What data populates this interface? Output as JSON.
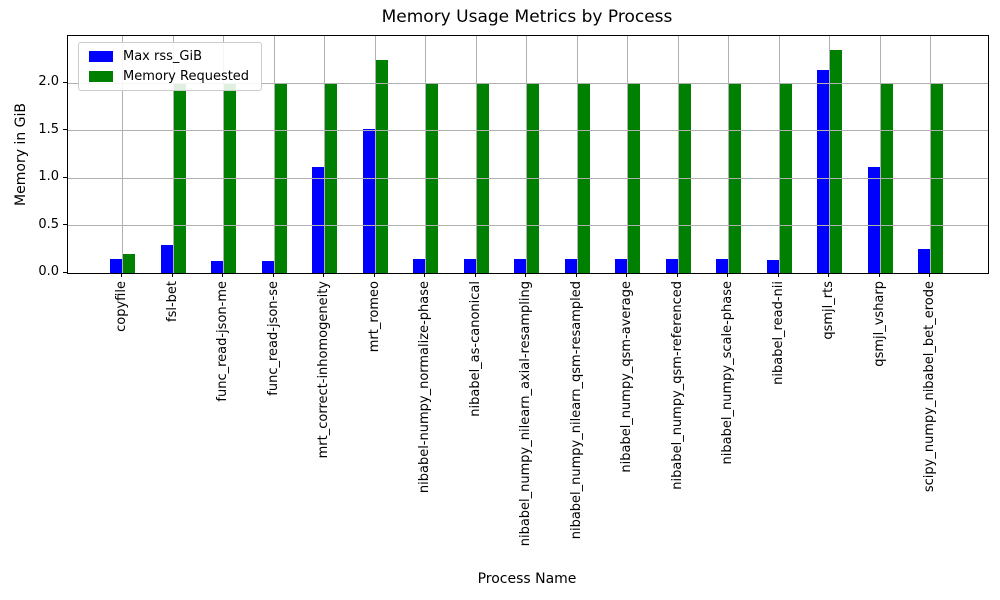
{
  "chart_data": {
    "type": "bar",
    "title": "Memory Usage Metrics by Process",
    "xlabel": "Process Name",
    "ylabel": "Memory in GiB",
    "categories": [
      "copyfile",
      "fsl-bet",
      "func_read-json-me",
      "func_read-json-se",
      "mrt_correct-inhomogeneity",
      "mrt_romeo",
      "nibabel-numpy_normalize-phase",
      "nibabel_as-canonical",
      "nibabel_numpy_nilearn_axial-resampling",
      "nibabel_numpy_nilearn_qsm-resampled",
      "nibabel_numpy_qsm-average",
      "nibabel_numpy_qsm-referenced",
      "nibabel_numpy_scale-phase",
      "nibabel_read-nii",
      "qsmjl_rts",
      "qsmjl_vsharp",
      "scipy_numpy_nibabel_bet_erode"
    ],
    "series": [
      {
        "name": "Max rss_GiB",
        "color": "#0000ff",
        "values": [
          0.15,
          0.3,
          0.13,
          0.13,
          1.12,
          1.52,
          0.15,
          0.15,
          0.15,
          0.15,
          0.15,
          0.15,
          0.15,
          0.14,
          2.14,
          1.12,
          0.25
        ]
      },
      {
        "name": "Memory Requested",
        "color": "#008000",
        "values": [
          0.2,
          2.0,
          2.0,
          2.0,
          2.0,
          2.25,
          2.0,
          2.0,
          2.0,
          2.0,
          2.0,
          2.0,
          2.0,
          2.0,
          2.35,
          2.0,
          2.0
        ]
      }
    ],
    "ylim": [
      0,
      2.5
    ],
    "y_ticks": [
      0.0,
      0.5,
      1.0,
      1.5,
      2.0
    ],
    "grid": true,
    "grid_color": "#b0b0b0",
    "legend_position": "upper left",
    "background": "#ffffff"
  }
}
